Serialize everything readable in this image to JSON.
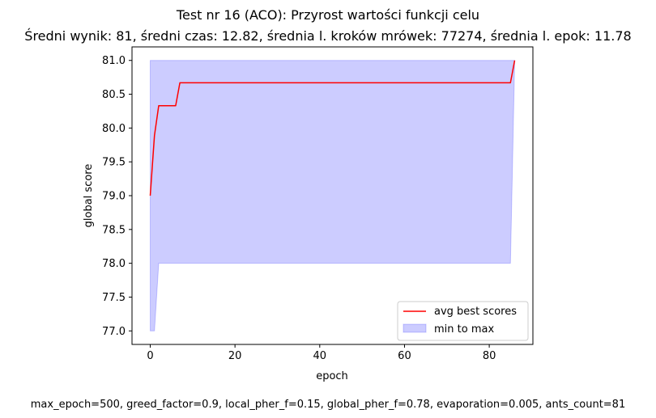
{
  "figure": {
    "title_line1": "Test nr 16 (ACO): Przyrost wartości funkcji celu",
    "title_line2": "Średni wynik: 81, średni czas: 12.82, średnia l. kroków mrówek: 77274, średnia l. epok: 11.78",
    "footer": "max_epoch=500, greed_factor=0.9, local_pher_f=0.15, global_pher_f=0.78, evaporation=0.005, ants_count=81"
  },
  "chart_data": {
    "type": "line",
    "title": "Test nr 16 (ACO): Przyrost wartości funkcji celu",
    "subtitle": "Średni wynik: 81, średni czas: 12.82, średnia l. kroków mrówek: 77274, średnia l. epok: 11.78",
    "xlabel": "epoch",
    "ylabel": "global score",
    "xlim": [
      -4.3,
      90.3
    ],
    "ylim": [
      76.8,
      81.2
    ],
    "x_ticks": [
      0,
      20,
      40,
      60,
      80
    ],
    "y_ticks": [
      77.0,
      77.5,
      78.0,
      78.5,
      79.0,
      79.5,
      80.0,
      80.5,
      81.0
    ],
    "x_tick_labels": [
      "0",
      "20",
      "40",
      "60",
      "80"
    ],
    "y_tick_labels": [
      "77.0",
      "77.5",
      "78.0",
      "78.5",
      "79.0",
      "79.5",
      "80.0",
      "80.5",
      "81.0"
    ],
    "grid": false,
    "legend_position": "lower-right",
    "series": [
      {
        "name": "avg best scores",
        "kind": "line",
        "color": "#ff0000",
        "x": [
          0,
          1,
          2,
          6,
          7,
          85,
          86
        ],
        "y": [
          79.0,
          79.89,
          80.33,
          80.33,
          80.67,
          80.67,
          81.0
        ]
      },
      {
        "name": "min to max",
        "kind": "band",
        "color": "#0000ff",
        "alpha": 0.2,
        "x": [
          0,
          1,
          2,
          85,
          86
        ],
        "y_min": [
          77.0,
          77.0,
          78.0,
          78.0,
          81.0
        ],
        "y_max": [
          81.0,
          81.0,
          81.0,
          81.0,
          81.0
        ]
      }
    ]
  }
}
